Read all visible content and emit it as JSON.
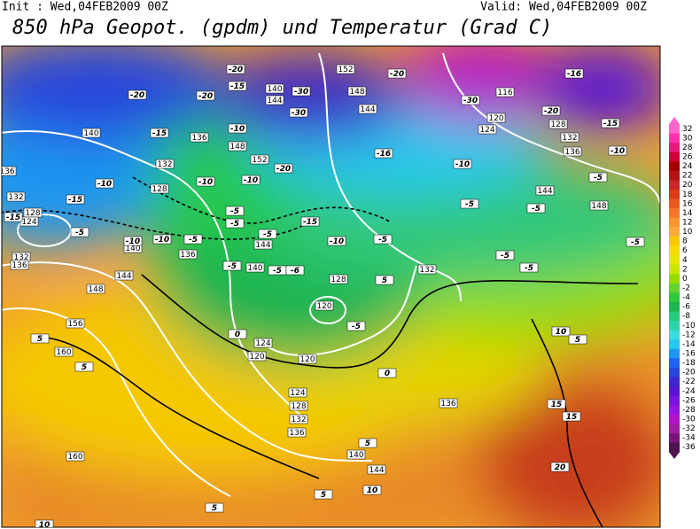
{
  "header": {
    "init": "Init : Wed,04FEB2009 00Z",
    "valid": "Valid: Wed,04FEB2009 00Z",
    "title": "850 hPa Geopot. (gpdm) und Temperatur (Grad C)"
  },
  "colorbar": {
    "ticks": [
      32,
      30,
      28,
      26,
      24,
      22,
      20,
      18,
      16,
      14,
      12,
      10,
      8,
      6,
      4,
      2,
      0,
      -2,
      -4,
      -6,
      -8,
      -10,
      -12,
      -14,
      -16,
      -18,
      -20,
      -22,
      -24,
      -26,
      -28,
      -30,
      -32,
      -34,
      -36
    ],
    "colors": [
      "#ff66cc",
      "#ff33aa",
      "#e6197f",
      "#cc0033",
      "#a00000",
      "#b41414",
      "#c82828",
      "#dc3c14",
      "#e65a1e",
      "#f07828",
      "#f59632",
      "#faaa3c",
      "#fac800",
      "#f5dc00",
      "#e6e600",
      "#c8e600",
      "#96dc00",
      "#64d232",
      "#32c83c",
      "#1eb450",
      "#28c878",
      "#32d2aa",
      "#3cdcdc",
      "#28c8f0",
      "#1e96f0",
      "#1e64f0",
      "#2846dc",
      "#3c28c8",
      "#5a14d2",
      "#7814dc",
      "#9614dc",
      "#b414c8",
      "#a01ea0",
      "#7a147a",
      "#501450"
    ]
  },
  "contour_labels": {
    "geopotential": [
      140,
      132,
      128,
      136,
      148,
      152,
      140,
      144,
      152,
      148,
      144,
      116,
      120,
      124,
      128,
      132,
      136,
      144,
      148,
      136,
      132,
      128,
      124,
      132,
      136,
      140,
      136,
      144,
      148,
      156,
      160,
      160,
      140,
      144,
      128,
      120,
      132,
      124,
      120,
      120,
      124,
      128,
      132,
      136,
      136,
      140,
      144
    ],
    "temperature": [
      -20,
      -20,
      -20,
      -15,
      -30,
      -30,
      -20,
      -30,
      -20,
      -16,
      -15,
      -15,
      -10,
      -20,
      -10,
      -10,
      -10,
      -15,
      -15,
      -5,
      -10,
      -10,
      -5,
      -5,
      -5,
      -5,
      -15,
      -10,
      -5,
      -16,
      -10,
      -5,
      -5,
      -5,
      -10,
      -5,
      -5,
      -5,
      -5,
      -5,
      -6,
      5,
      -5,
      0,
      0,
      5,
      5,
      10,
      5,
      15,
      15,
      20,
      5,
      10,
      5,
      5,
      10
    ]
  }
}
